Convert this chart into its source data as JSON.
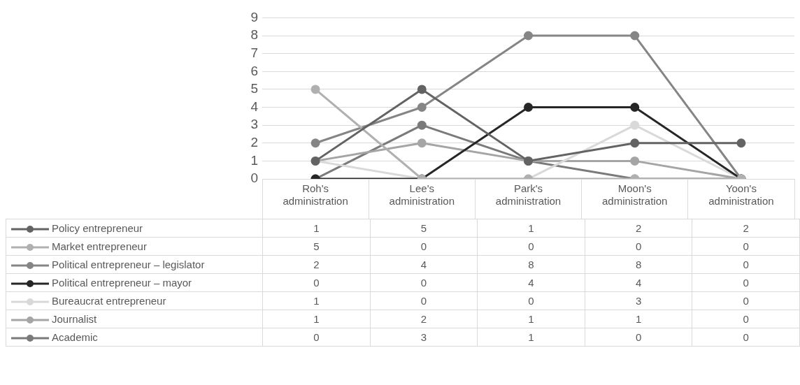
{
  "chart_data": {
    "type": "line",
    "categories": [
      "Roh's administration",
      "Lee's administration",
      "Park's administration",
      "Moon's administration",
      "Yoon's administration"
    ],
    "series": [
      {
        "name": "Policy entrepreneur",
        "color": "#636363",
        "values": [
          1,
          5,
          1,
          2,
          2
        ]
      },
      {
        "name": "Market entrepreneur",
        "color": "#b0b0b0",
        "values": [
          5,
          0,
          0,
          0,
          0
        ]
      },
      {
        "name": "Political entrepreneur – legislator",
        "color": "#858585",
        "values": [
          2,
          4,
          8,
          8,
          0
        ]
      },
      {
        "name": "Political entrepreneur – mayor",
        "color": "#262626",
        "values": [
          0,
          0,
          4,
          4,
          0
        ]
      },
      {
        "name": "Bureaucrat entrepreneur",
        "color": "#d9d9d9",
        "values": [
          1,
          0,
          0,
          3,
          0
        ]
      },
      {
        "name": "Journalist",
        "color": "#a5a5a5",
        "values": [
          1,
          2,
          1,
          1,
          0
        ]
      },
      {
        "name": "Academic",
        "color": "#7a7a7a",
        "values": [
          0,
          3,
          1,
          0,
          0
        ]
      }
    ],
    "ylim": [
      0,
      9
    ],
    "yticks": [
      0,
      1,
      2,
      3,
      4,
      5,
      6,
      7,
      8,
      9
    ],
    "grid": "y",
    "legend": "bottom",
    "marker": "circle",
    "line_style": "solid",
    "data_labels": true
  }
}
